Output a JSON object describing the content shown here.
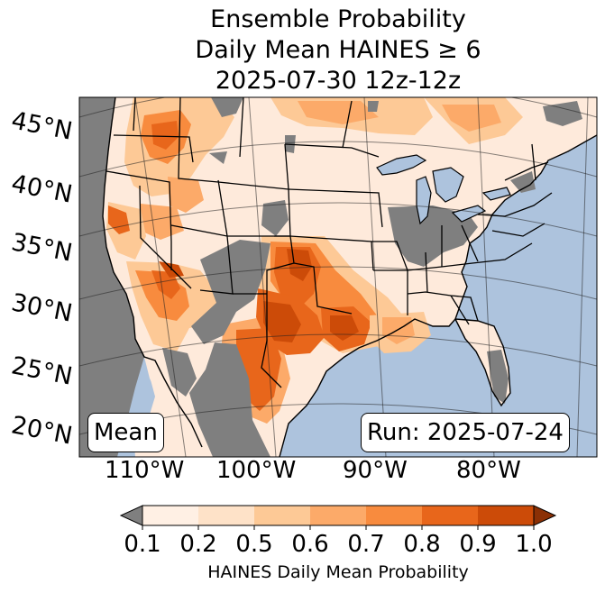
{
  "title": {
    "line1": "Ensemble Probability",
    "line2": "Daily Mean HAINES ≥ 6",
    "line3": "2025-07-30 12z-12z"
  },
  "map": {
    "latitude_labels": [
      "45°N",
      "40°N",
      "35°N",
      "30°N",
      "25°N",
      "20°N"
    ],
    "longitude_labels": [
      "110°W",
      "100°W",
      "90°W",
      "80°W"
    ],
    "stat_box": "Mean",
    "run_box": "Run: 2025-07-24"
  },
  "colorbar": {
    "ticks": [
      "0.1",
      "0.2",
      "0.5",
      "0.6",
      "0.7",
      "0.8",
      "0.9",
      "1.0"
    ],
    "label": "HAINES Daily Mean Probability",
    "bins": [
      {
        "range": "<0.1 (under)",
        "color": "#7f7f7f"
      },
      {
        "range": "0.1-0.2",
        "color": "#fff0e4"
      },
      {
        "range": "0.2-0.5",
        "color": "#fee2c8"
      },
      {
        "range": "0.5-0.6",
        "color": "#fdc996"
      },
      {
        "range": "0.6-0.7",
        "color": "#fcaa69"
      },
      {
        "range": "0.7-0.8",
        "color": "#f88b3e"
      },
      {
        "range": "0.8-0.9",
        "color": "#e8661b"
      },
      {
        "range": "0.9-1.0",
        "color": "#cc4b08"
      },
      {
        "range": ">1.0 (over)",
        "color": "#8b3005"
      }
    ]
  },
  "colors": {
    "ocean": "#adc3dd",
    "land_base": "#feeadb",
    "below_threshold": "#7f7f7f",
    "lakes": "#adc3dd"
  }
}
